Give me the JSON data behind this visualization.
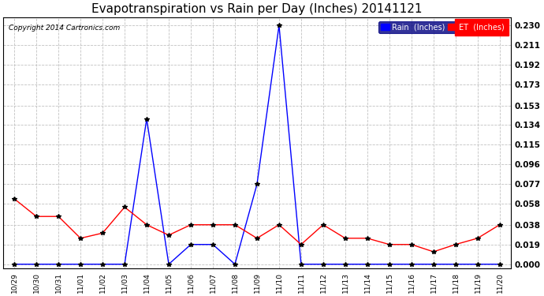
{
  "title": "Evapotranspiration vs Rain per Day (Inches) 20141121",
  "copyright": "Copyright 2014 Cartronics.com",
  "labels": [
    "10/29",
    "10/30",
    "10/31",
    "11/01",
    "11/02",
    "11/03",
    "11/04",
    "11/05",
    "11/06",
    "11/07",
    "11/08",
    "11/09",
    "11/10",
    "11/11",
    "11/12",
    "11/13",
    "11/14",
    "11/15",
    "11/16",
    "11/17",
    "11/18",
    "11/19",
    "11/20"
  ],
  "rain": [
    0.0,
    0.0,
    0.0,
    0.0,
    0.0,
    0.0,
    0.14,
    0.0,
    0.019,
    0.019,
    0.0,
    0.077,
    0.23,
    0.0,
    0.0,
    0.0,
    0.0,
    0.0,
    0.0,
    0.0,
    0.0,
    0.0,
    0.0
  ],
  "et": [
    0.063,
    0.046,
    0.046,
    0.025,
    0.03,
    0.055,
    0.038,
    0.028,
    0.038,
    0.038,
    0.038,
    0.025,
    0.038,
    0.019,
    0.038,
    0.025,
    0.025,
    0.019,
    0.019,
    0.012,
    0.019,
    0.025,
    0.038
  ],
  "rain_color": "#0000FF",
  "et_color": "#FF0000",
  "background_color": "#FFFFFF",
  "grid_color": "#BBBBBB",
  "yticks": [
    0.0,
    0.019,
    0.038,
    0.058,
    0.077,
    0.096,
    0.115,
    0.134,
    0.153,
    0.173,
    0.192,
    0.211,
    0.23
  ],
  "ylim": [
    -0.004,
    0.238
  ],
  "title_fontsize": 11,
  "legend_rain_label": "Rain  (Inches)",
  "legend_et_label": "ET  (Inches)"
}
